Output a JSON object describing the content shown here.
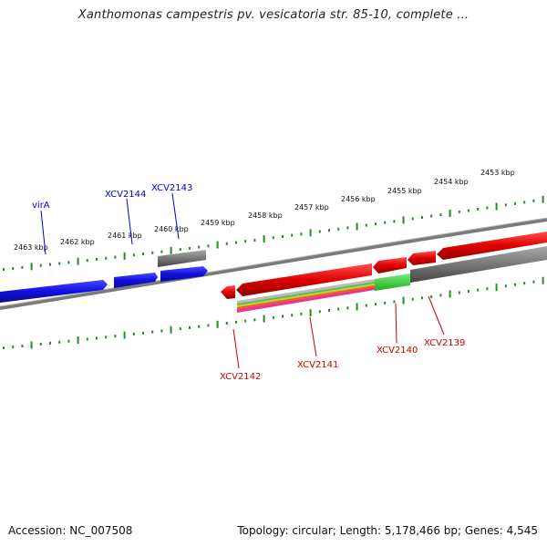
{
  "title": "Xanthomonas campestris pv. vesicatoria str. 85-10, complete ...",
  "footer": {
    "accession": "Accession: NC_007508",
    "summary": "Topology: circular; Length: 5,178,466 bp; Genes: 4,545"
  },
  "colors": {
    "ruler": "#2a8a2a",
    "forward_gene": "#1010e0",
    "reverse_gene": "#e00000",
    "grey_track": "#777777",
    "label_blue": "#0000cc",
    "label_red": "#cc0000",
    "green_feature": "#33cc33"
  },
  "ruler_labels": [
    "2463 kbp",
    "2462 kbp",
    "2461 kbp",
    "2460 kbp",
    "2459 kbp",
    "2458 kbp",
    "2457 kbp",
    "2456 kbp",
    "2455 kbp",
    "2454 kbp",
    "2453 kbp"
  ],
  "genes_top": [
    {
      "name": "virA",
      "icon": "forward-gene-arrow"
    },
    {
      "name": "XCV2144",
      "icon": "forward-gene-arrow"
    },
    {
      "name": "XCV2143",
      "icon": "forward-gene-arrow"
    }
  ],
  "genes_bottom": [
    {
      "name": "XCV2142",
      "icon": "reverse-gene-arrow"
    },
    {
      "name": "XCV2141",
      "icon": "reverse-gene-arrow"
    },
    {
      "name": "XCV2140",
      "icon": "reverse-gene-arrow"
    },
    {
      "name": "XCV2139",
      "icon": "reverse-gene-arrow"
    }
  ]
}
